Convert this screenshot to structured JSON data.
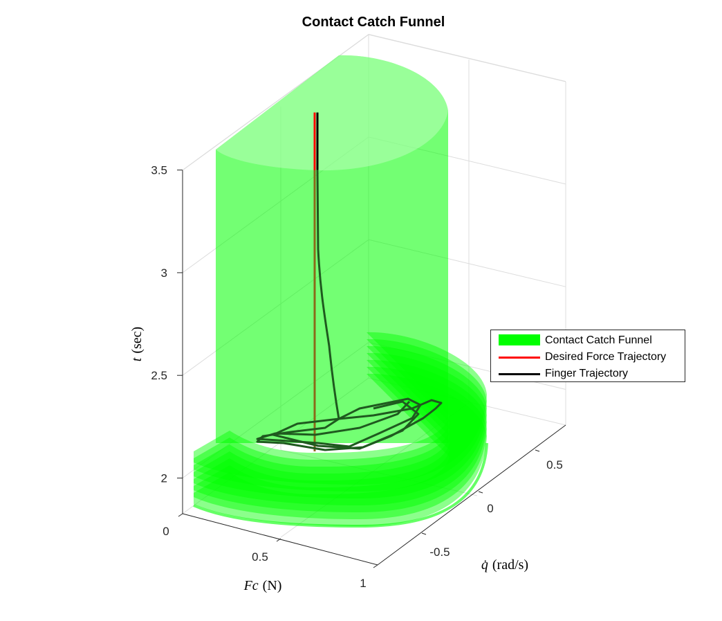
{
  "chart_data": {
    "type": "3d-surface-line",
    "title": "Contact Catch Funnel",
    "xlabel_var": "Fc",
    "xlabel_unit": "(N)",
    "ylabel_var": "q̇",
    "ylabel_unit": "(rad/s)",
    "zlabel_var": "t",
    "zlabel_unit": "(sec)",
    "x_ticks": [
      "0",
      "0.5",
      "1"
    ],
    "y_ticks": [
      "-0.5",
      "0",
      "0.5"
    ],
    "z_ticks": [
      "2",
      "2.5",
      "3",
      "3.5"
    ],
    "zlim": [
      1.85,
      3.75
    ],
    "grid": true,
    "legend_placement": "right",
    "series": [
      {
        "name": "Contact Catch Funnel",
        "color": "#00ff00",
        "kind": "surface"
      },
      {
        "name": "Desired Force Trajectory",
        "color": "#ff0000",
        "kind": "line",
        "t_range": [
          2.13,
          3.78
        ]
      },
      {
        "name": "Finger Trajectory",
        "color": "#000000",
        "kind": "line",
        "t_range": [
          2.21,
          3.78
        ]
      }
    ]
  }
}
